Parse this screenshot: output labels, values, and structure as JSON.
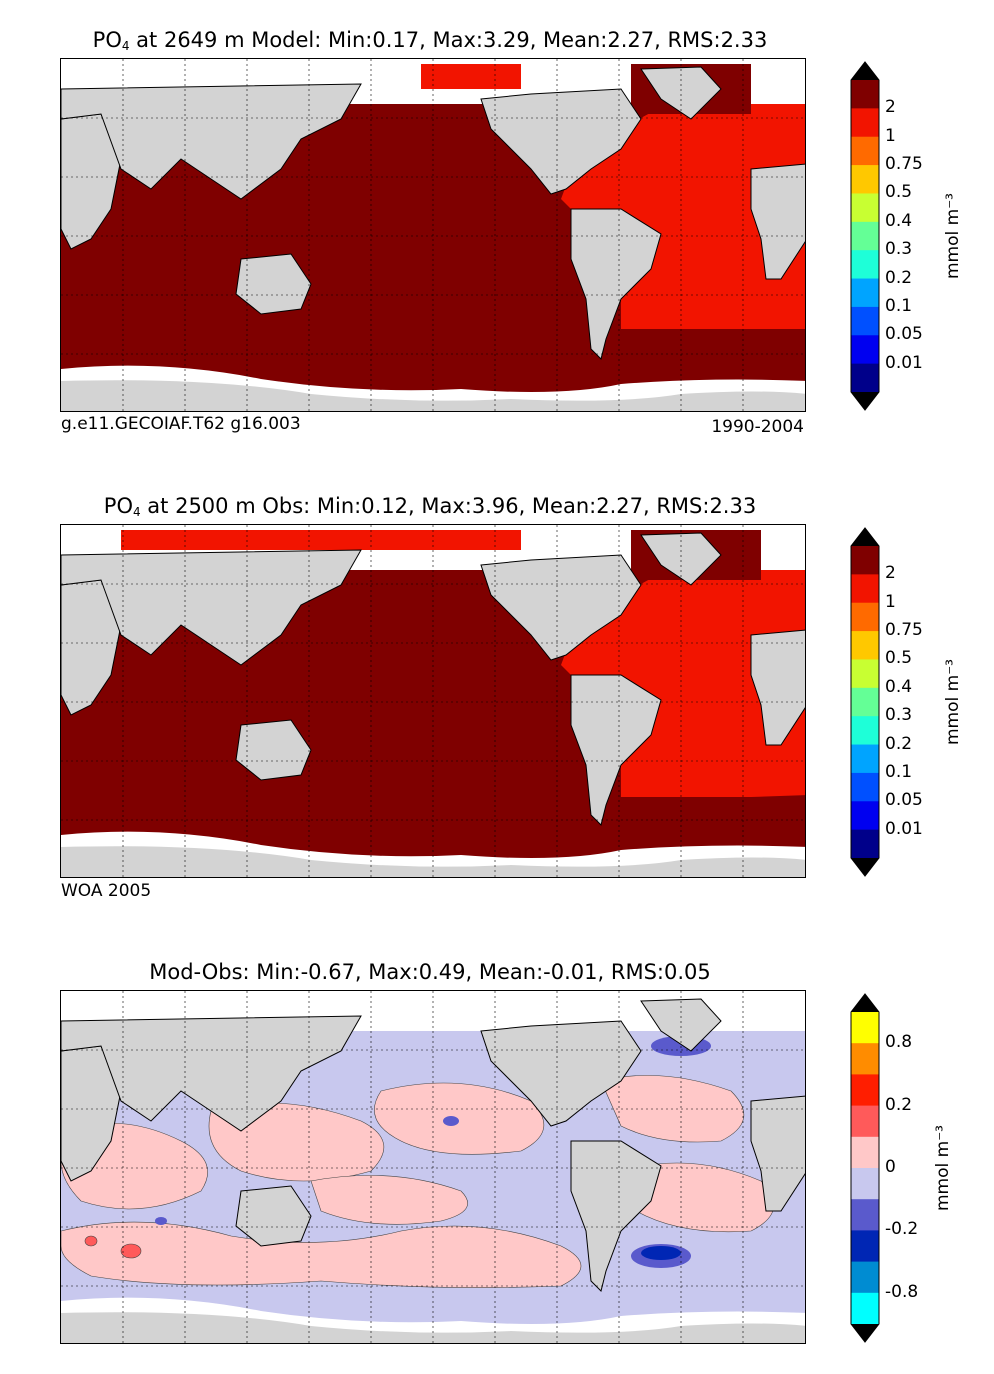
{
  "panels": [
    {
      "id": "model",
      "title_main": "PO",
      "title_sub": "4",
      "title_rest": " at 2649 m Model: Min:0.17, Max:3.29, Mean:2.27, RMS:2.33",
      "footer_left": "g.e11.GECOIAF.T62 g16.003",
      "footer_right": "1990-2004",
      "colorbar": {
        "ticks": [
          "2",
          "1",
          "0.75",
          "0.5",
          "0.4",
          "0.3",
          "0.2",
          "0.1",
          "0.05",
          "0.01"
        ],
        "colors": [
          "#7f0000",
          "#f21400",
          "#ff6a00",
          "#ffc800",
          "#c8ff32",
          "#64ff96",
          "#1effd8",
          "#00a4ff",
          "#0050ff",
          "#0000f0",
          "#00008a"
        ],
        "unit": "mmol m⁻³",
        "top_color": "#000000",
        "bottom_color": "#000000"
      }
    },
    {
      "id": "obs",
      "title_main": "PO",
      "title_sub": "4",
      "title_rest": " at 2500 m Obs: Min:0.12, Max:3.96, Mean:2.27, RMS:2.33",
      "footer_left": "WOA 2005",
      "footer_right": "",
      "colorbar": {
        "ticks": [
          "2",
          "1",
          "0.75",
          "0.5",
          "0.4",
          "0.3",
          "0.2",
          "0.1",
          "0.05",
          "0.01"
        ],
        "colors": [
          "#7f0000",
          "#f21400",
          "#ff6a00",
          "#ffc800",
          "#c8ff32",
          "#64ff96",
          "#1effd8",
          "#00a4ff",
          "#0050ff",
          "#0000f0",
          "#00008a"
        ],
        "unit": "mmol m⁻³",
        "top_color": "#000000",
        "bottom_color": "#000000"
      }
    },
    {
      "id": "diff",
      "title_main": "Mod-Obs: Min:-0.67, Max:0.49, Mean:-0.01, RMS:0.05",
      "title_sub": "",
      "title_rest": "",
      "footer_left": "",
      "footer_right": "",
      "colorbar": {
        "ticks": [
          "0.8",
          "0.2",
          "0",
          "-0.2",
          "-0.8"
        ],
        "colors": [
          "#ffff00",
          "#ff8c00",
          "#ff1e00",
          "#ff5a5a",
          "#ffc8c8",
          "#c8c8ee",
          "#5a5acc",
          "#0026b4",
          "#008cd2",
          "#00ffff"
        ],
        "unit": "mmol m⁻³",
        "top_color": "#000000",
        "bottom_color": "#000000"
      }
    }
  ],
  "colors": {
    "land": "#d3d3d3",
    "ocean_model": "#7f0000",
    "atlantic": "#f21400",
    "missing": "#ffffff",
    "diff_pos": "#ffc8c8",
    "diff_neg": "#c8c8ee"
  }
}
